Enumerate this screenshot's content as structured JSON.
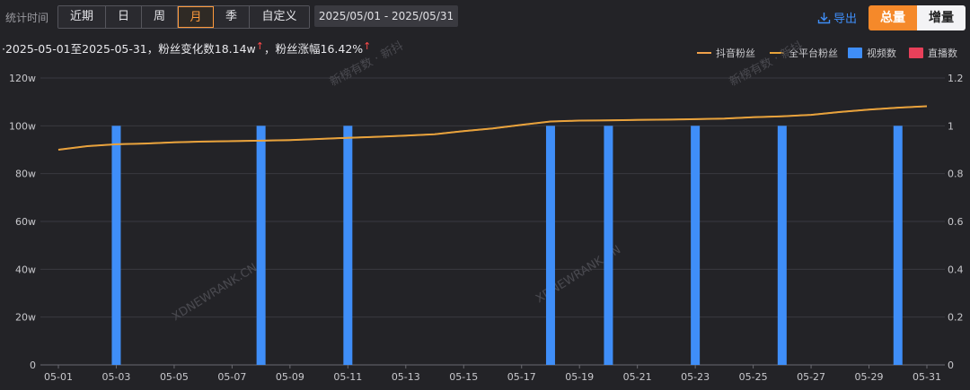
{
  "toolbar": {
    "stat_label": "统计时间",
    "tabs": [
      "近期",
      "日",
      "周",
      "月",
      "季",
      "自定义"
    ],
    "active_tab": 3,
    "date_range": "2025/05/01  -  2025/05/31",
    "export_label": "导出",
    "total_label": "总量",
    "increment_label": "增量"
  },
  "summary": {
    "range_prefix": "·2025-05-01至2025-05-31，粉丝变化数18.14w",
    "growth_text": "，粉丝涨幅16.42%",
    "up_arrow": "↑"
  },
  "watermarks": [
    "新榜有数 · 新抖",
    "XDNEWRANK.CN"
  ],
  "colors": {
    "douyin": "#f0a14a",
    "all": "#e7a33a",
    "video": "#3f8ef8",
    "live": "#e8405a",
    "accent": "#f5892a"
  },
  "chart_data": {
    "type": "bar",
    "categories": [
      "05-01",
      "05-02",
      "05-03",
      "05-04",
      "05-05",
      "05-06",
      "05-07",
      "05-08",
      "05-09",
      "05-10",
      "05-11",
      "05-12",
      "05-13",
      "05-14",
      "05-15",
      "05-16",
      "05-17",
      "05-18",
      "05-19",
      "05-20",
      "05-21",
      "05-22",
      "05-23",
      "05-24",
      "05-25",
      "05-26",
      "05-27",
      "05-28",
      "05-29",
      "05-30",
      "05-31"
    ],
    "x_tick_labels": [
      "05-01",
      "05-03",
      "05-05",
      "05-07",
      "05-09",
      "05-11",
      "05-13",
      "05-15",
      "05-17",
      "05-19",
      "05-21",
      "05-23",
      "05-25",
      "05-27",
      "05-29",
      "05-31"
    ],
    "series": [
      {
        "name": "抖音粉丝",
        "type": "line",
        "axis": "left",
        "values": [
          90.0,
          91.5,
          92.3,
          92.6,
          93.1,
          93.4,
          93.6,
          93.8,
          94.0,
          94.5,
          95.0,
          95.4,
          95.9,
          96.5,
          97.8,
          98.9,
          100.4,
          101.8,
          102.2,
          102.3,
          102.5,
          102.6,
          102.8,
          103.0,
          103.6,
          104.0,
          104.6,
          105.8,
          106.8,
          107.6,
          108.2
        ]
      },
      {
        "name": "全平台粉丝",
        "type": "line",
        "axis": "left",
        "values": [
          90.0,
          91.5,
          92.3,
          92.6,
          93.1,
          93.4,
          93.6,
          93.8,
          94.0,
          94.5,
          95.0,
          95.4,
          95.9,
          96.5,
          97.8,
          98.9,
          100.4,
          101.8,
          102.2,
          102.3,
          102.5,
          102.6,
          102.8,
          103.0,
          103.6,
          104.0,
          104.6,
          105.8,
          106.8,
          107.6,
          108.2
        ]
      },
      {
        "name": "视频数",
        "type": "bar",
        "axis": "right",
        "values": [
          0,
          0,
          1,
          0,
          0,
          0,
          0,
          1,
          0,
          0,
          1,
          0,
          0,
          0,
          0,
          0,
          0,
          1,
          0,
          1,
          0,
          0,
          1,
          0,
          0,
          1,
          0,
          0,
          0,
          1,
          0
        ]
      },
      {
        "name": "直播数",
        "type": "bar",
        "axis": "right",
        "values": [
          0,
          0,
          0,
          0,
          0,
          0,
          0,
          0,
          0,
          0,
          0,
          0,
          0,
          0,
          0,
          0,
          0,
          0,
          0,
          0,
          0,
          0,
          0,
          0,
          0,
          0,
          0,
          0,
          0,
          0,
          0
        ]
      }
    ],
    "y_left": {
      "ticks": [
        "0",
        "20w",
        "40w",
        "60w",
        "80w",
        "100w",
        "120w"
      ],
      "range": [
        0,
        120
      ],
      "unit": "w"
    },
    "y_right": {
      "ticks": [
        "0",
        "0.2",
        "0.4",
        "0.6",
        "0.8",
        "1",
        "1.2"
      ],
      "range": [
        0,
        1.2
      ]
    },
    "grid": true,
    "legend_position": "top-right"
  }
}
